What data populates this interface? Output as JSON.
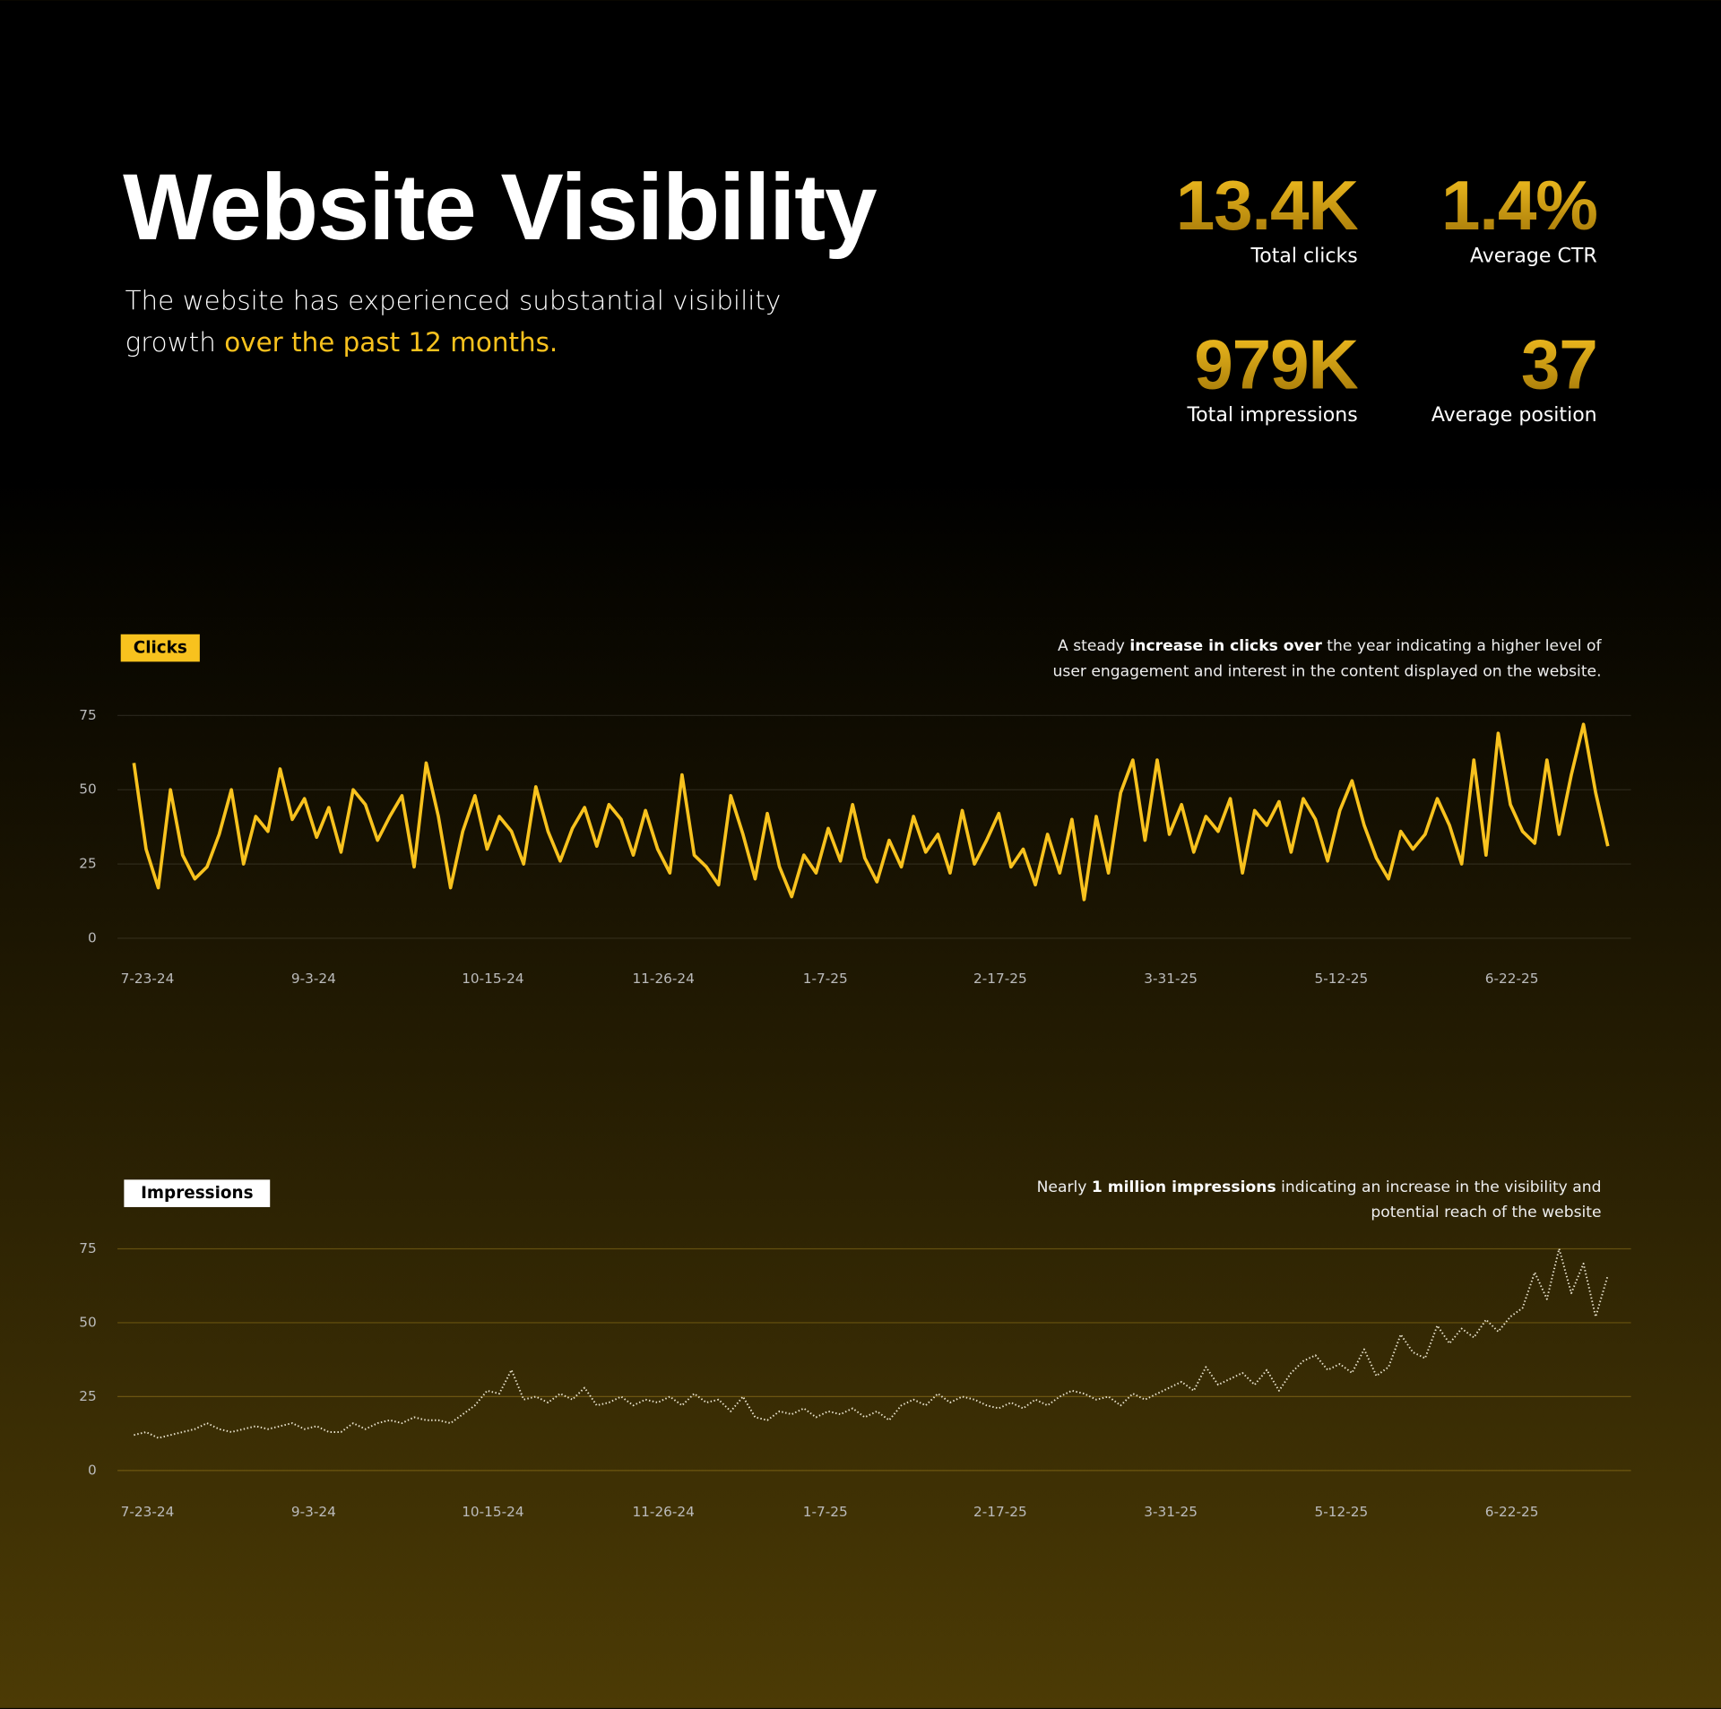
{
  "header": {
    "title": "Website Visibility",
    "subtitle": "The website has experienced substantial visibility growth",
    "subtitle_highlight": "over the past 12 months."
  },
  "stats": [
    {
      "value": "13.4K",
      "label": "Total clicks"
    },
    {
      "value": "1.4%",
      "label": "Average CTR"
    },
    {
      "value": "979K",
      "label": "Total impressions"
    },
    {
      "value": "37",
      "label": "Average position"
    }
  ],
  "chart_data": [
    {
      "type": "line",
      "annotation": [
        "A steady ",
        "increase in clicks over",
        " the year indicating a higher level of user engagement and interest in the content displayed on the website."
      ],
      "tag_color": "#f8c21e",
      "line_style": "solid",
      "grid": true,
      "ylim": [
        0,
        75
      ],
      "yticks": [
        0,
        25,
        50,
        75
      ],
      "xlim": [
        -1.35,
        122.9
      ],
      "xticks": [
        {
          "value": 0,
          "label": "7-23-24"
        },
        {
          "value": 14,
          "label": "9-3-24"
        },
        {
          "value": 28,
          "label": "10-15-24"
        },
        {
          "value": 42,
          "label": "11-26-24"
        },
        {
          "value": 56,
          "label": "1-7-25"
        },
        {
          "value": 70,
          "label": "2-17-25"
        },
        {
          "value": 84,
          "label": "3-31-25"
        },
        {
          "value": 98,
          "label": "5-12-25"
        },
        {
          "value": 112,
          "label": "6-22-25"
        }
      ],
      "series": [
        {
          "name": "Clicks",
          "color": "#f8c21e",
          "values": [
            59,
            30,
            17,
            50,
            28,
            20,
            24,
            35,
            50,
            25,
            41,
            36,
            57,
            40,
            47,
            34,
            44,
            29,
            50,
            45,
            33,
            41,
            48,
            24,
            59,
            41,
            17,
            36,
            48,
            30,
            41,
            36,
            25,
            51,
            36,
            26,
            37,
            44,
            31,
            45,
            40,
            28,
            43,
            30,
            22,
            55,
            28,
            24,
            18,
            48,
            35,
            20,
            42,
            24,
            14,
            28,
            22,
            37,
            26,
            45,
            27,
            19,
            33,
            24,
            41,
            29,
            35,
            22,
            43,
            25,
            33,
            42,
            24,
            30,
            18,
            35,
            22,
            40,
            13,
            41,
            22,
            49,
            60,
            33,
            60,
            35,
            45,
            29,
            41,
            36,
            47,
            22,
            43,
            38,
            46,
            29,
            47,
            40,
            26,
            43,
            53,
            38,
            27,
            20,
            36,
            30,
            35,
            47,
            38,
            25,
            60,
            28,
            69,
            45,
            36,
            32,
            60,
            35,
            55,
            72,
            49,
            31
          ]
        }
      ]
    },
    {
      "type": "line",
      "annotation": [
        "Nearly ",
        "1 million impressions",
        " indicating an increase in the visibility and potential reach of the website"
      ],
      "tag_color": "#ffffff",
      "line_style": "dotted",
      "grid": true,
      "ylim": [
        0,
        75
      ],
      "yticks": [
        0,
        25,
        50,
        75
      ],
      "xlim": [
        -1.35,
        122.9
      ],
      "xticks": [
        {
          "value": 0,
          "label": "7-23-24"
        },
        {
          "value": 14,
          "label": "9-3-24"
        },
        {
          "value": 28,
          "label": "10-15-24"
        },
        {
          "value": 42,
          "label": "11-26-24"
        },
        {
          "value": 56,
          "label": "1-7-25"
        },
        {
          "value": 70,
          "label": "2-17-25"
        },
        {
          "value": 84,
          "label": "3-31-25"
        },
        {
          "value": 98,
          "label": "5-12-25"
        },
        {
          "value": 112,
          "label": "6-22-25"
        }
      ],
      "series": [
        {
          "name": "Impressions",
          "color": "#e8e2cc",
          "values": [
            12,
            13,
            11,
            12,
            13,
            14,
            16,
            14,
            13,
            14,
            15,
            14,
            15,
            16,
            14,
            15,
            13,
            13,
            16,
            14,
            16,
            17,
            16,
            18,
            17,
            17,
            16,
            19,
            22,
            27,
            26,
            34,
            24,
            25,
            23,
            26,
            24,
            28,
            22,
            23,
            25,
            22,
            24,
            23,
            25,
            22,
            26,
            23,
            24,
            20,
            25,
            18,
            17,
            20,
            19,
            21,
            18,
            20,
            19,
            21,
            18,
            20,
            17,
            22,
            24,
            22,
            26,
            23,
            25,
            24,
            22,
            21,
            23,
            21,
            24,
            22,
            25,
            27,
            26,
            24,
            25,
            22,
            26,
            24,
            26,
            28,
            30,
            27,
            35,
            29,
            31,
            33,
            29,
            34,
            27,
            33,
            37,
            39,
            34,
            36,
            33,
            41,
            32,
            35,
            46,
            40,
            38,
            49,
            43,
            48,
            45,
            51,
            47,
            52,
            55,
            67,
            58,
            75,
            60,
            70,
            52,
            66
          ]
        }
      ]
    }
  ]
}
